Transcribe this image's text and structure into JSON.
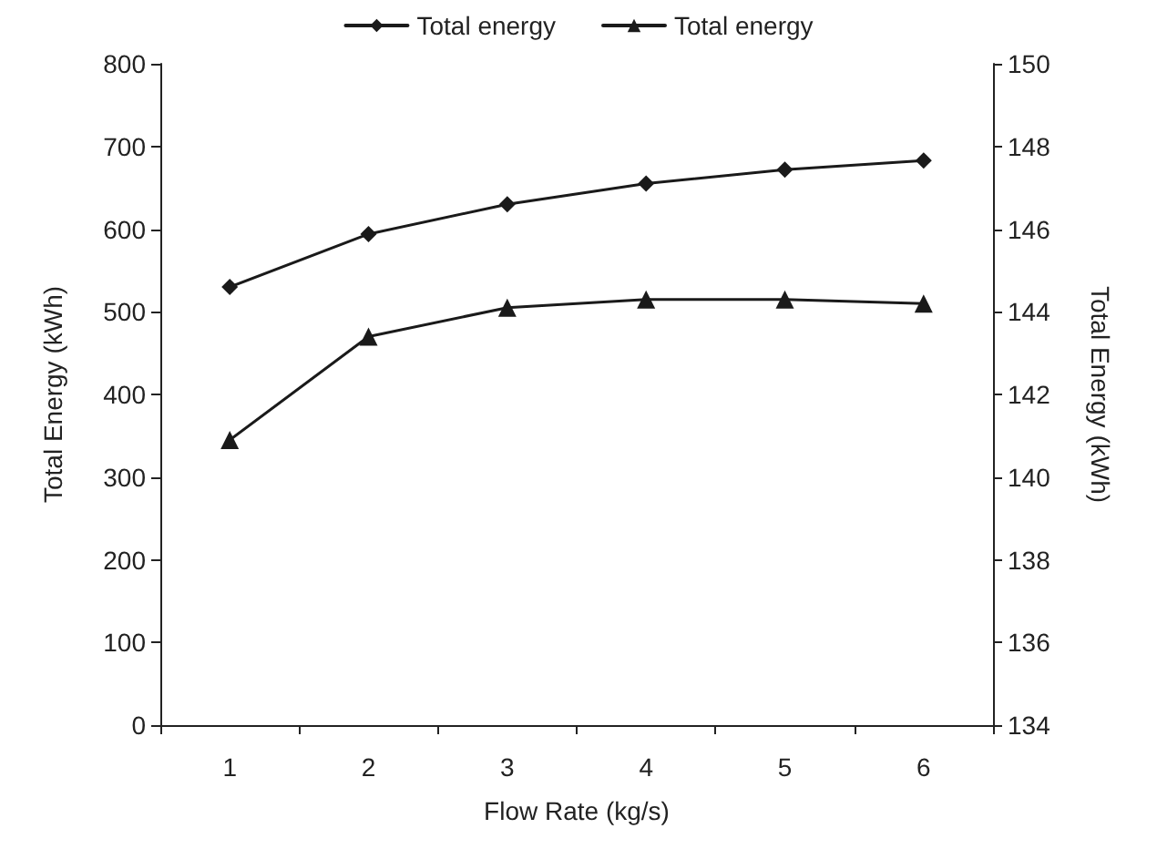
{
  "chart_data": {
    "type": "line",
    "xlabel": "Flow Rate (kg/s)",
    "ylabel": "Total Energy (kWh)",
    "y2label": "Total Energy (kWh)",
    "categories": [
      "1",
      "2",
      "3",
      "4",
      "5",
      "6"
    ],
    "series": [
      {
        "name": "Total energy",
        "color": "#1a1a1a",
        "marker": "diamond",
        "values": [
          530,
          594,
          630,
          655,
          672,
          683
        ]
      },
      {
        "name": "Total energy",
        "color": "#1a1a1a",
        "marker": "triangle",
        "axis": "y2",
        "values": [
          140.9,
          143.4,
          144.1,
          144.3,
          144.3,
          144.2
        ]
      }
    ],
    "ylim": [
      0,
      800
    ],
    "yticks": [
      0,
      100,
      200,
      300,
      400,
      500,
      600,
      700,
      800
    ],
    "y2lim": [
      134,
      150
    ],
    "y2ticks": [
      134,
      136,
      138,
      140,
      142,
      144,
      146,
      148,
      150
    ],
    "grid": false,
    "legend": "top",
    "line_style": "solid"
  }
}
